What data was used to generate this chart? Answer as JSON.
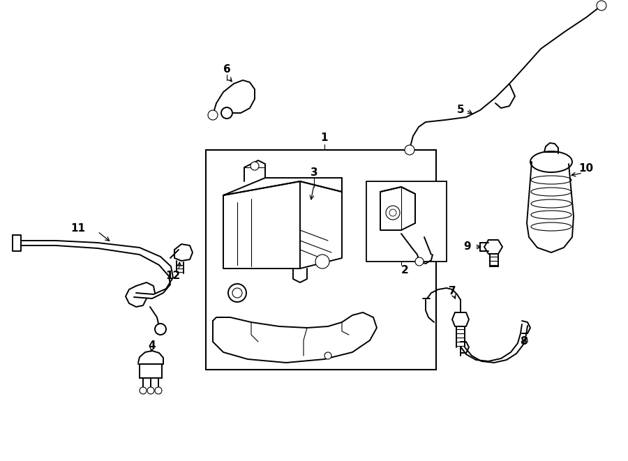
{
  "bg_color": "#ffffff",
  "line_color": "#000000",
  "fig_width": 9.0,
  "fig_height": 6.61,
  "dpi": 100,
  "lw_main": 1.4,
  "lw_thin": 0.8,
  "lw_thick": 2.0
}
